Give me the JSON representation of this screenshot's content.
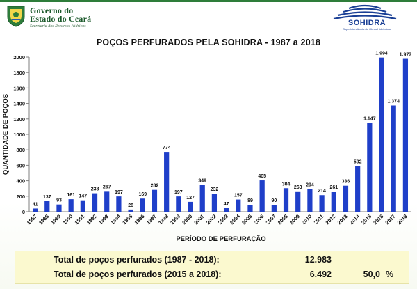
{
  "header": {
    "gov_name_line1": "Governo do",
    "gov_name_line2": "Estado do Ceará",
    "gov_subtitle": "Secretaria dos Recursos Hídricos",
    "sohidra_name": "SOHIDRA",
    "sohidra_subtitle": "Superintendência de Obras Hidráulicas"
  },
  "colors": {
    "bar": "#1f3fc9",
    "brand_green": "#2e7d3a",
    "brand_blue": "#1a3f95",
    "summary_bg": "#fbf9cf"
  },
  "chart_data": {
    "type": "bar",
    "title": "POÇOS PERFURADOS PELA SOHIDRA - 1987 a 2018",
    "xlabel": "PERÍODO DE PERFURAÇÃO",
    "ylabel": "QUANTIDADE DE POÇOS",
    "ylim": [
      0,
      2000
    ],
    "yticks": [
      0,
      200,
      400,
      600,
      800,
      1000,
      1200,
      1400,
      1600,
      1800,
      2000
    ],
    "grid": false,
    "categories": [
      "1987",
      "1988",
      "1989",
      "1990",
      "1991",
      "1992",
      "1993",
      "1994",
      "1995",
      "1996",
      "1997",
      "1998",
      "1999",
      "2000",
      "2001",
      "2002",
      "2003",
      "2004",
      "2005",
      "2006",
      "2007",
      "2008",
      "2009",
      "2010",
      "2011",
      "2012",
      "2013",
      "2014",
      "2015",
      "2016",
      "2017",
      "2018"
    ],
    "values": [
      41,
      137,
      93,
      161,
      147,
      238,
      267,
      197,
      28,
      169,
      282,
      774,
      197,
      127,
      349,
      232,
      47,
      157,
      89,
      405,
      90,
      304,
      263,
      294,
      214,
      261,
      336,
      592,
      1147,
      1994,
      1374,
      1977
    ],
    "data_labels": [
      "41",
      "137",
      "93",
      "161",
      "147",
      "238",
      "267",
      "197",
      "28",
      "169",
      "282",
      "774",
      "197",
      "127",
      "349",
      "232",
      "47",
      "157",
      "89",
      "405",
      "90",
      "304",
      "263",
      "294",
      "214",
      "261",
      "336",
      "592",
      "1.147",
      "1.994",
      "1.374",
      "1.977"
    ]
  },
  "summary": {
    "row1": {
      "label": "Total de poços perfurados  (1987 - 2018):",
      "value": "12.983"
    },
    "row2": {
      "label": "Total de poços perfurados  (2015 a 2018):",
      "value": "6.492",
      "percent": "50,0",
      "unit": "%"
    }
  }
}
